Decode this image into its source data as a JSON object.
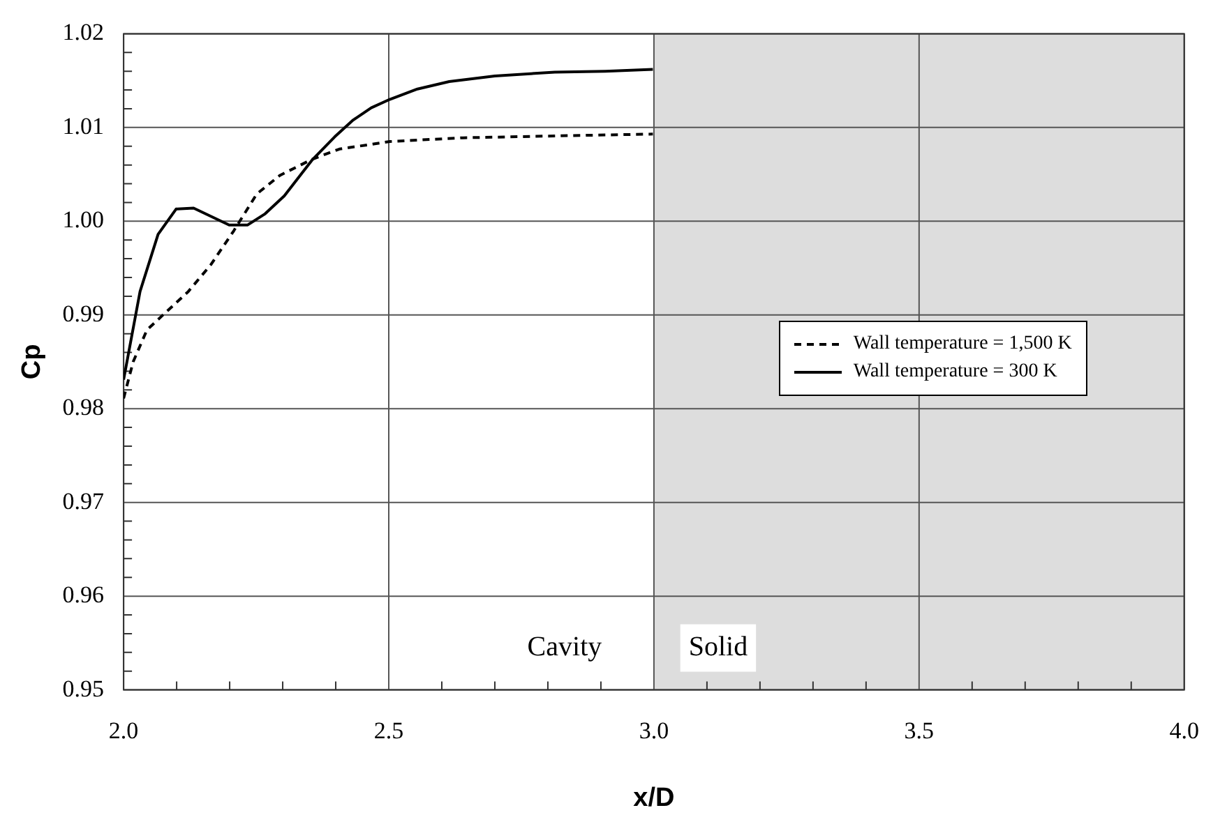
{
  "chart_data": {
    "type": "line",
    "xlabel": "x/D",
    "ylabel": "Cp",
    "xlim": [
      2.0,
      4.0
    ],
    "ylim": [
      0.95,
      1.02
    ],
    "xticks": [
      {
        "value": 2,
        "label": "2.0"
      },
      2.5,
      {
        "value": 3,
        "label": "3.0"
      },
      3.5,
      {
        "value": 4,
        "label": "4.0"
      }
    ],
    "yticks": [
      0.95,
      0.96,
      0.97,
      0.98,
      0.99,
      {
        "value": 1,
        "label": "1.00"
      },
      1.01,
      1.02
    ],
    "grid": true,
    "legend": "right",
    "marker": "none",
    "bands": [
      {
        "axis": "x",
        "from": 3.0,
        "to": 4.0,
        "label": "Solid",
        "color": "#dddddd"
      }
    ],
    "annotations": [
      "Cavity"
    ],
    "series": [
      {
        "name": "Wall temperature = 1,500 K",
        "color": "#000000",
        "line_style": "dashed",
        "x": [
          2.0,
          2.018,
          2.044,
          2.078,
          2.122,
          2.165,
          2.208,
          2.251,
          2.295,
          2.355,
          2.407,
          2.502,
          2.64,
          2.813,
          2.998
        ],
        "values": [
          0.9811,
          0.985,
          0.9884,
          0.9902,
          0.9925,
          0.9954,
          0.999,
          1.0029,
          1.0049,
          1.0066,
          1.0077,
          1.0085,
          1.0089,
          1.0091,
          1.0093
        ]
      },
      {
        "name": "Wall temperature = 300 K",
        "color": "#000000",
        "line_style": "solid",
        "x": [
          2.0,
          2.031,
          2.065,
          2.099,
          2.132,
          2.199,
          2.234,
          2.267,
          2.303,
          2.355,
          2.398,
          2.433,
          2.467,
          2.502,
          2.554,
          2.614,
          2.7,
          2.813,
          2.908,
          2.998
        ],
        "values": [
          0.9831,
          0.9925,
          0.9986,
          1.0013,
          1.0014,
          0.9996,
          0.9996,
          1.0008,
          1.0027,
          1.0065,
          1.009,
          1.0108,
          1.0121,
          1.013,
          1.0141,
          1.0149,
          1.0155,
          1.0159,
          1.016,
          1.0162
        ]
      }
    ]
  }
}
